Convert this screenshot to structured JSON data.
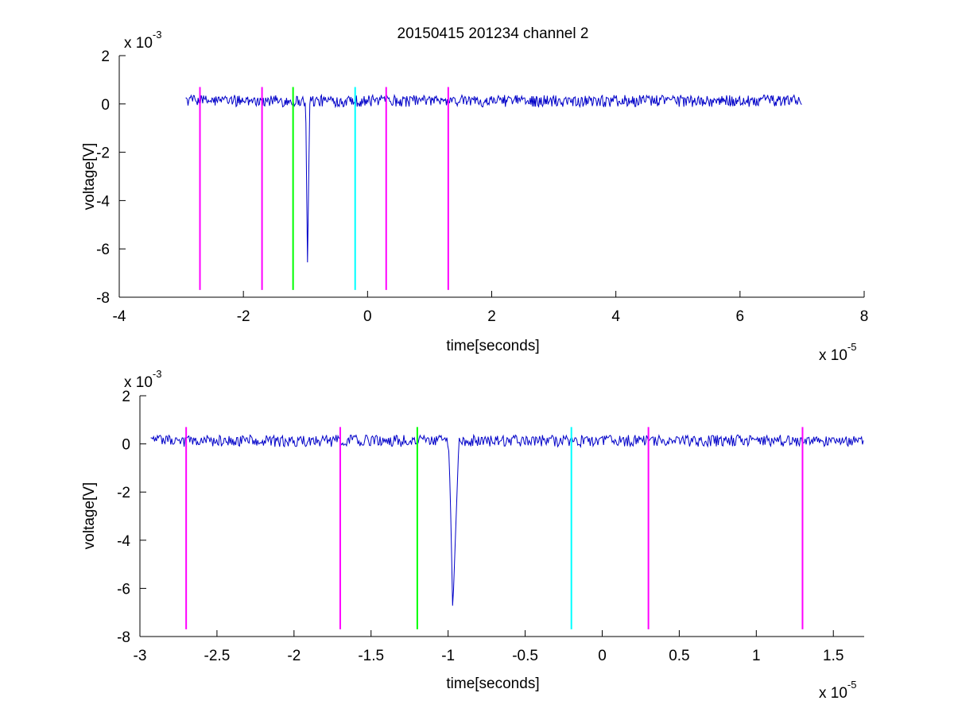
{
  "chart_data": [
    {
      "type": "line",
      "title": "20150415 201234 channel 2",
      "xlabel": "time[seconds]",
      "ylabel": "voltage[V]",
      "xlim": [
        -4,
        8
      ],
      "ylim": [
        -8,
        2
      ],
      "x_ticks": [
        -4,
        -2,
        0,
        2,
        4,
        6,
        8
      ],
      "x_tick_labels": [
        "-4",
        "-2",
        "0",
        "2",
        "4",
        "6",
        "8"
      ],
      "y_ticks": [
        -8,
        -6,
        -4,
        -2,
        0,
        2
      ],
      "y_tick_labels": [
        "-8",
        "-6",
        "-4",
        "-2",
        "0",
        "2"
      ],
      "x_multiplier": {
        "base": "x 10",
        "exponent": "-5"
      },
      "y_multiplier": {
        "base": "x 10",
        "exponent": "-3"
      },
      "signal": {
        "color": "#0000c8",
        "x_range": [
          -2.93,
          7.0
        ],
        "baseline": 0.1,
        "noise_amplitude": 0.35,
        "pulse": {
          "start": -1.0,
          "min_time": -0.97,
          "min_value": -7.0,
          "end": -0.93
        }
      },
      "markers": [
        {
          "x": -2.7,
          "color": "#ff00ff"
        },
        {
          "x": -1.7,
          "color": "#ff00ff"
        },
        {
          "x": -1.2,
          "color": "#00ff00"
        },
        {
          "x": -0.2,
          "color": "#00ffff"
        },
        {
          "x": 0.3,
          "color": "#ff00ff"
        },
        {
          "x": 1.3,
          "color": "#ff00ff"
        }
      ],
      "marker_range": [
        -7.7,
        0.7
      ]
    },
    {
      "type": "line",
      "title": "",
      "xlabel": "time[seconds]",
      "ylabel": "voltage[V]",
      "xlim": [
        -3.0,
        1.7
      ],
      "ylim": [
        -8,
        2
      ],
      "x_ticks": [
        -3,
        -2.5,
        -2,
        -1.5,
        -1,
        -0.5,
        0,
        0.5,
        1,
        1.5
      ],
      "x_tick_labels": [
        "-3",
        "-2.5",
        "-2",
        "-1.5",
        "-1",
        "-0.5",
        "0",
        "0.5",
        "1",
        "1.5"
      ],
      "y_ticks": [
        -8,
        -6,
        -4,
        -2,
        0,
        2
      ],
      "y_tick_labels": [
        "-8",
        "-6",
        "-4",
        "-2",
        "0",
        "2"
      ],
      "x_multiplier": {
        "base": "x 10",
        "exponent": "-5"
      },
      "y_multiplier": {
        "base": "x 10",
        "exponent": "-3"
      },
      "signal": {
        "color": "#0000c8",
        "x_range": [
          -2.93,
          1.7
        ],
        "baseline": 0.1,
        "noise_amplitude": 0.35,
        "pulse": {
          "start": -1.0,
          "min_time": -0.97,
          "min_value": -7.0,
          "end": -0.93
        }
      },
      "markers": [
        {
          "x": -2.7,
          "color": "#ff00ff"
        },
        {
          "x": -1.7,
          "color": "#ff00ff"
        },
        {
          "x": -1.2,
          "color": "#00ff00"
        },
        {
          "x": -0.2,
          "color": "#00ffff"
        },
        {
          "x": 0.3,
          "color": "#ff00ff"
        },
        {
          "x": 1.3,
          "color": "#ff00ff"
        }
      ],
      "marker_range": [
        -7.7,
        0.7
      ]
    }
  ]
}
